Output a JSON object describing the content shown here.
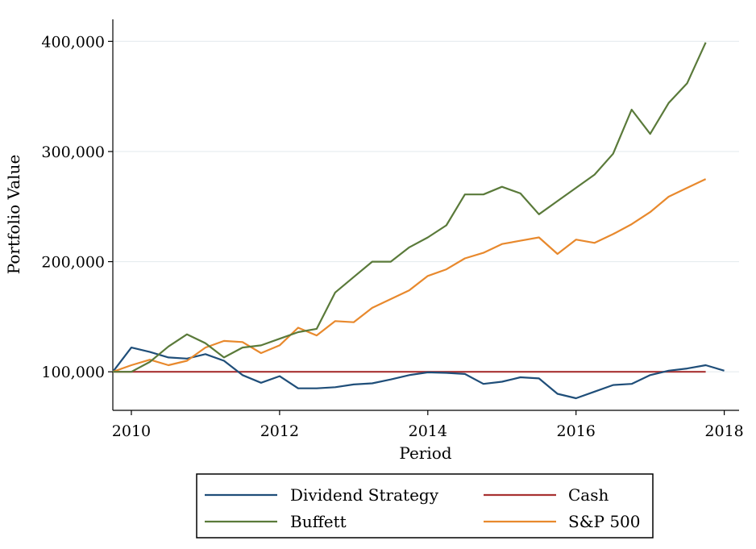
{
  "chart_data": {
    "type": "line",
    "xlabel": "Period",
    "ylabel": "Portfolio Value",
    "xlim": [
      2009.75,
      2018.2
    ],
    "ylim": [
      65000,
      420000
    ],
    "x_ticks": [
      2010,
      2012,
      2014,
      2016,
      2018
    ],
    "x_tick_labels": [
      "2010",
      "2012",
      "2014",
      "2016",
      "2018"
    ],
    "y_ticks": [
      100000,
      200000,
      300000,
      400000
    ],
    "y_tick_labels": [
      "100,000",
      "200,000",
      "300,000",
      "400,000"
    ],
    "grid": "horizontal",
    "legend": {
      "position": "bottom",
      "columns": 2
    },
    "series": [
      {
        "name": "Dividend Strategy",
        "color": "#1f4e79",
        "x": [
          2009.75,
          2010.0,
          2010.25,
          2010.5,
          2010.75,
          2011.0,
          2011.25,
          2011.5,
          2011.75,
          2012.0,
          2012.25,
          2012.5,
          2012.75,
          2013.0,
          2013.25,
          2013.5,
          2013.75,
          2014.0,
          2014.25,
          2014.5,
          2014.75,
          2015.0,
          2015.25,
          2015.5,
          2015.75,
          2016.0,
          2016.25,
          2016.5,
          2016.75,
          2017.0,
          2017.25,
          2017.5,
          2017.75,
          2018.0
        ],
        "y": [
          100000,
          122000,
          118000,
          113000,
          112000,
          116000,
          110000,
          97000,
          90000,
          96000,
          85000,
          85000,
          86000,
          88500,
          89500,
          93000,
          97000,
          99500,
          99000,
          98000,
          89000,
          91000,
          95000,
          94000,
          80000,
          76000,
          82000,
          88000,
          89000,
          97000,
          101000,
          103000,
          106000,
          101000
        ]
      },
      {
        "name": "Cash",
        "color": "#a83232",
        "x": [
          2009.75,
          2017.75
        ],
        "y": [
          100000,
          100000
        ]
      },
      {
        "name": "Buffett",
        "color": "#5a7a3a",
        "x": [
          2009.75,
          2010.0,
          2010.25,
          2010.5,
          2010.75,
          2011.0,
          2011.25,
          2011.5,
          2011.75,
          2012.0,
          2012.25,
          2012.5,
          2012.75,
          2013.0,
          2013.25,
          2013.5,
          2013.75,
          2014.0,
          2014.25,
          2014.5,
          2014.75,
          2015.0,
          2015.25,
          2015.5,
          2015.75,
          2016.0,
          2016.25,
          2016.5,
          2016.75,
          2017.0,
          2017.25,
          2017.5,
          2017.75
        ],
        "y": [
          100000,
          100000,
          109000,
          123000,
          134000,
          126000,
          113000,
          122000,
          124000,
          130000,
          136000,
          139000,
          172000,
          186000,
          200000,
          200000,
          213000,
          222000,
          233000,
          261000,
          261000,
          268000,
          262000,
          243000,
          255000,
          267000,
          279000,
          298000,
          338000,
          316000,
          344000,
          362000,
          399000
        ]
      },
      {
        "name": "S&P 500",
        "color": "#e8892d",
        "x": [
          2009.75,
          2010.0,
          2010.25,
          2010.5,
          2010.75,
          2011.0,
          2011.25,
          2011.5,
          2011.75,
          2012.0,
          2012.25,
          2012.5,
          2012.75,
          2013.0,
          2013.25,
          2013.5,
          2013.75,
          2014.0,
          2014.25,
          2014.5,
          2014.75,
          2015.0,
          2015.25,
          2015.5,
          2015.75,
          2016.0,
          2016.25,
          2016.5,
          2016.75,
          2017.0,
          2017.25,
          2017.5,
          2017.75
        ],
        "y": [
          100000,
          106000,
          111000,
          106000,
          110000,
          122000,
          128000,
          127000,
          117000,
          124000,
          140000,
          133000,
          146000,
          145000,
          158000,
          166000,
          174000,
          187000,
          193000,
          203000,
          208000,
          216000,
          219000,
          222000,
          207000,
          220000,
          217000,
          225000,
          234000,
          245000,
          259000,
          267000,
          275000
        ]
      }
    ]
  }
}
